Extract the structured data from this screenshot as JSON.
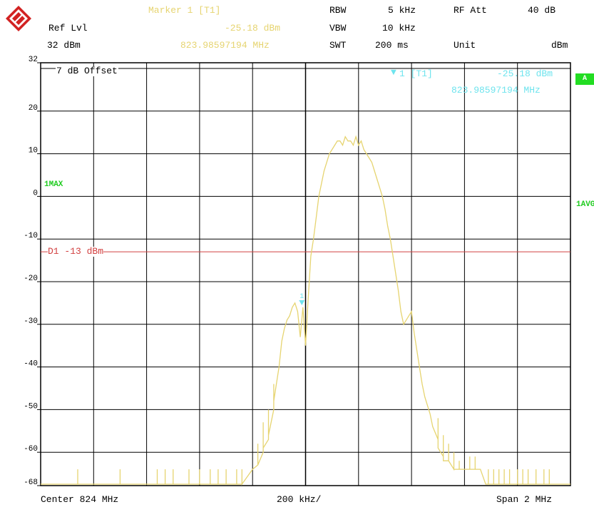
{
  "header": {
    "marker_title": "Marker 1 [T1]",
    "marker_level": "-25.18 dBm",
    "marker_freq": "823.98597194 MHz",
    "ref_lvl_label": "Ref Lvl",
    "ref_lvl_value": "32 dBm",
    "rbw_label": "RBW",
    "rbw_value": "5 kHz",
    "vbw_label": "VBW",
    "vbw_value": "10 kHz",
    "swt_label": "SWT",
    "swt_value": "200 ms",
    "rfatt_label": "RF Att",
    "rfatt_value": "40 dB",
    "unit_label": "Unit",
    "unit_value": "dBm"
  },
  "overlay": {
    "offset_text": "7 dB Offset",
    "marker_label": "1 [T1]",
    "marker_level": "-25.18 dBm",
    "marker_freq": "823.98597194 MHz",
    "trace_label_left": "1MAX",
    "trace_label_right": "1AVG",
    "side_badge": "A",
    "display_line_label": "D1 -13 dBm"
  },
  "footer": {
    "center": "Center 824 MHz",
    "div": "200 kHz/",
    "span": "Span 2 MHz"
  },
  "colors": {
    "trace": "#e6d470",
    "marker": "#6fe4ee",
    "display_line": "#d24040",
    "grid": "#000000",
    "badge": "#22dd22"
  },
  "chart_data": {
    "type": "line",
    "xlabel": "",
    "ylabel": "",
    "x_unit": "MHz",
    "y_unit": "dBm",
    "xlim": [
      823,
      825
    ],
    "ylim": [
      -68,
      32
    ],
    "y_ticks": [
      32,
      20,
      10,
      0,
      -10,
      -20,
      -30,
      -40,
      -50,
      -60,
      -68
    ],
    "grid": true,
    "display_line": {
      "name": "D1",
      "value": -13
    },
    "marker": {
      "name": "1 [T1]",
      "x": 823.98597194,
      "y": -25.18
    },
    "series": [
      {
        "name": "1MAX",
        "x": [
          823.0,
          823.14,
          823.14,
          823.14,
          823.3,
          823.3,
          823.3,
          823.44,
          823.44,
          823.44,
          823.47,
          823.47,
          823.47,
          823.5,
          823.5,
          823.5,
          823.56,
          823.56,
          823.56,
          823.6,
          823.6,
          823.6,
          823.64,
          823.64,
          823.64,
          823.67,
          823.67,
          823.67,
          823.7,
          823.7,
          823.7,
          823.74,
          823.74,
          823.74,
          823.76,
          823.76,
          823.76,
          823.8,
          823.82,
          823.82,
          823.82,
          823.84,
          823.84,
          823.84,
          823.86,
          823.86,
          823.86,
          823.88,
          823.88,
          823.88,
          823.9,
          823.91,
          823.92,
          823.93,
          823.94,
          823.95,
          823.96,
          823.97,
          823.98,
          823.99,
          824.0,
          824.01,
          824.02,
          824.03,
          824.04,
          824.05,
          824.06,
          824.07,
          824.08,
          824.09,
          824.1,
          824.11,
          824.12,
          824.13,
          824.14,
          824.15,
          824.16,
          824.17,
          824.18,
          824.19,
          824.2,
          824.21,
          824.22,
          824.23,
          824.24,
          824.25,
          824.26,
          824.27,
          824.28,
          824.29,
          824.3,
          824.31,
          824.32,
          824.33,
          824.34,
          824.35,
          824.36,
          824.37,
          824.38,
          824.39,
          824.4,
          824.41,
          824.42,
          824.43,
          824.44,
          824.45,
          824.46,
          824.47,
          824.48,
          824.5,
          824.5,
          824.5,
          824.52,
          824.52,
          824.52,
          824.54,
          824.54,
          824.54,
          824.56,
          824.56,
          824.56,
          824.58,
          824.58,
          824.58,
          824.62,
          824.62,
          824.62,
          824.64,
          824.64,
          824.64,
          824.66,
          824.68,
          824.69,
          824.69,
          824.69,
          824.71,
          824.71,
          824.71,
          824.73,
          824.73,
          824.73,
          824.75,
          824.75,
          824.75,
          824.77,
          824.77,
          824.77,
          824.8,
          824.8,
          824.8,
          824.82,
          824.82,
          824.82,
          824.84,
          824.84,
          824.84,
          824.87,
          824.87,
          824.87,
          824.9,
          824.9,
          824.9,
          824.92,
          824.92,
          824.92,
          825.0
        ],
        "y": [
          -68,
          -68,
          -64,
          -68,
          -68,
          -64,
          -68,
          -68,
          -64,
          -68,
          -68,
          -64,
          -68,
          -68,
          -64,
          -68,
          -68,
          -64,
          -68,
          -68,
          -64,
          -68,
          -68,
          -64,
          -68,
          -68,
          -64,
          -68,
          -68,
          -64,
          -68,
          -68,
          -64,
          -68,
          -68,
          -64,
          -68,
          -64,
          -63,
          -58,
          -63,
          -60,
          -53,
          -59,
          -57,
          -50,
          -56,
          -50,
          -44,
          -48,
          -40,
          -34,
          -31,
          -29,
          -28,
          -26,
          -25,
          -27,
          -33,
          -26,
          -35,
          -24,
          -14,
          -10,
          -5,
          0,
          3,
          6,
          8,
          10,
          11,
          12,
          13,
          13,
          12,
          14,
          13,
          13,
          12,
          14,
          12,
          13,
          11,
          10,
          9,
          8,
          6,
          4,
          2,
          0,
          -3,
          -7,
          -10,
          -14,
          -18,
          -22,
          -27,
          -30,
          -29,
          -28,
          -27,
          -32,
          -36,
          -40,
          -44,
          -47,
          -49,
          -51,
          -54,
          -57,
          -52,
          -59,
          -61,
          -56,
          -62,
          -62,
          -58,
          -62,
          -64,
          -60,
          -64,
          -64,
          -62,
          -64,
          -64,
          -61,
          -64,
          -64,
          -61,
          -64,
          -64,
          -68,
          -68,
          -64,
          -68,
          -68,
          -64,
          -68,
          -68,
          -64,
          -68,
          -68,
          -64,
          -68,
          -68,
          -64,
          -68,
          -68,
          -64,
          -68,
          -68,
          -64,
          -68,
          -68,
          -64,
          -68,
          -68,
          -64,
          -68,
          -68,
          -64,
          -68,
          -68,
          -64,
          -68,
          -68
        ]
      }
    ]
  }
}
